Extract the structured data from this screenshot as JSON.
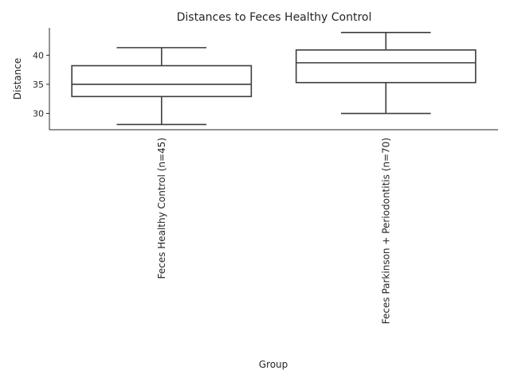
{
  "chart_data": {
    "type": "box",
    "title": "Distances to Feces Healthy Control",
    "xlabel": "Group",
    "ylabel": "Distance",
    "ylim": [
      27.2,
      44.7
    ],
    "yticks": [
      30,
      35,
      40
    ],
    "grid": false,
    "categories": [
      "Feces Healthy Control (n=45)",
      "Feces Parkinson + Periodontitis (n=70)"
    ],
    "boxes": [
      {
        "whisker_low": 28.1,
        "q1": 32.9,
        "median": 35.0,
        "q3": 38.2,
        "whisker_high": 41.3
      },
      {
        "whisker_low": 30.0,
        "q1": 35.3,
        "median": 38.7,
        "q3": 40.9,
        "whisker_high": 43.9
      }
    ]
  }
}
